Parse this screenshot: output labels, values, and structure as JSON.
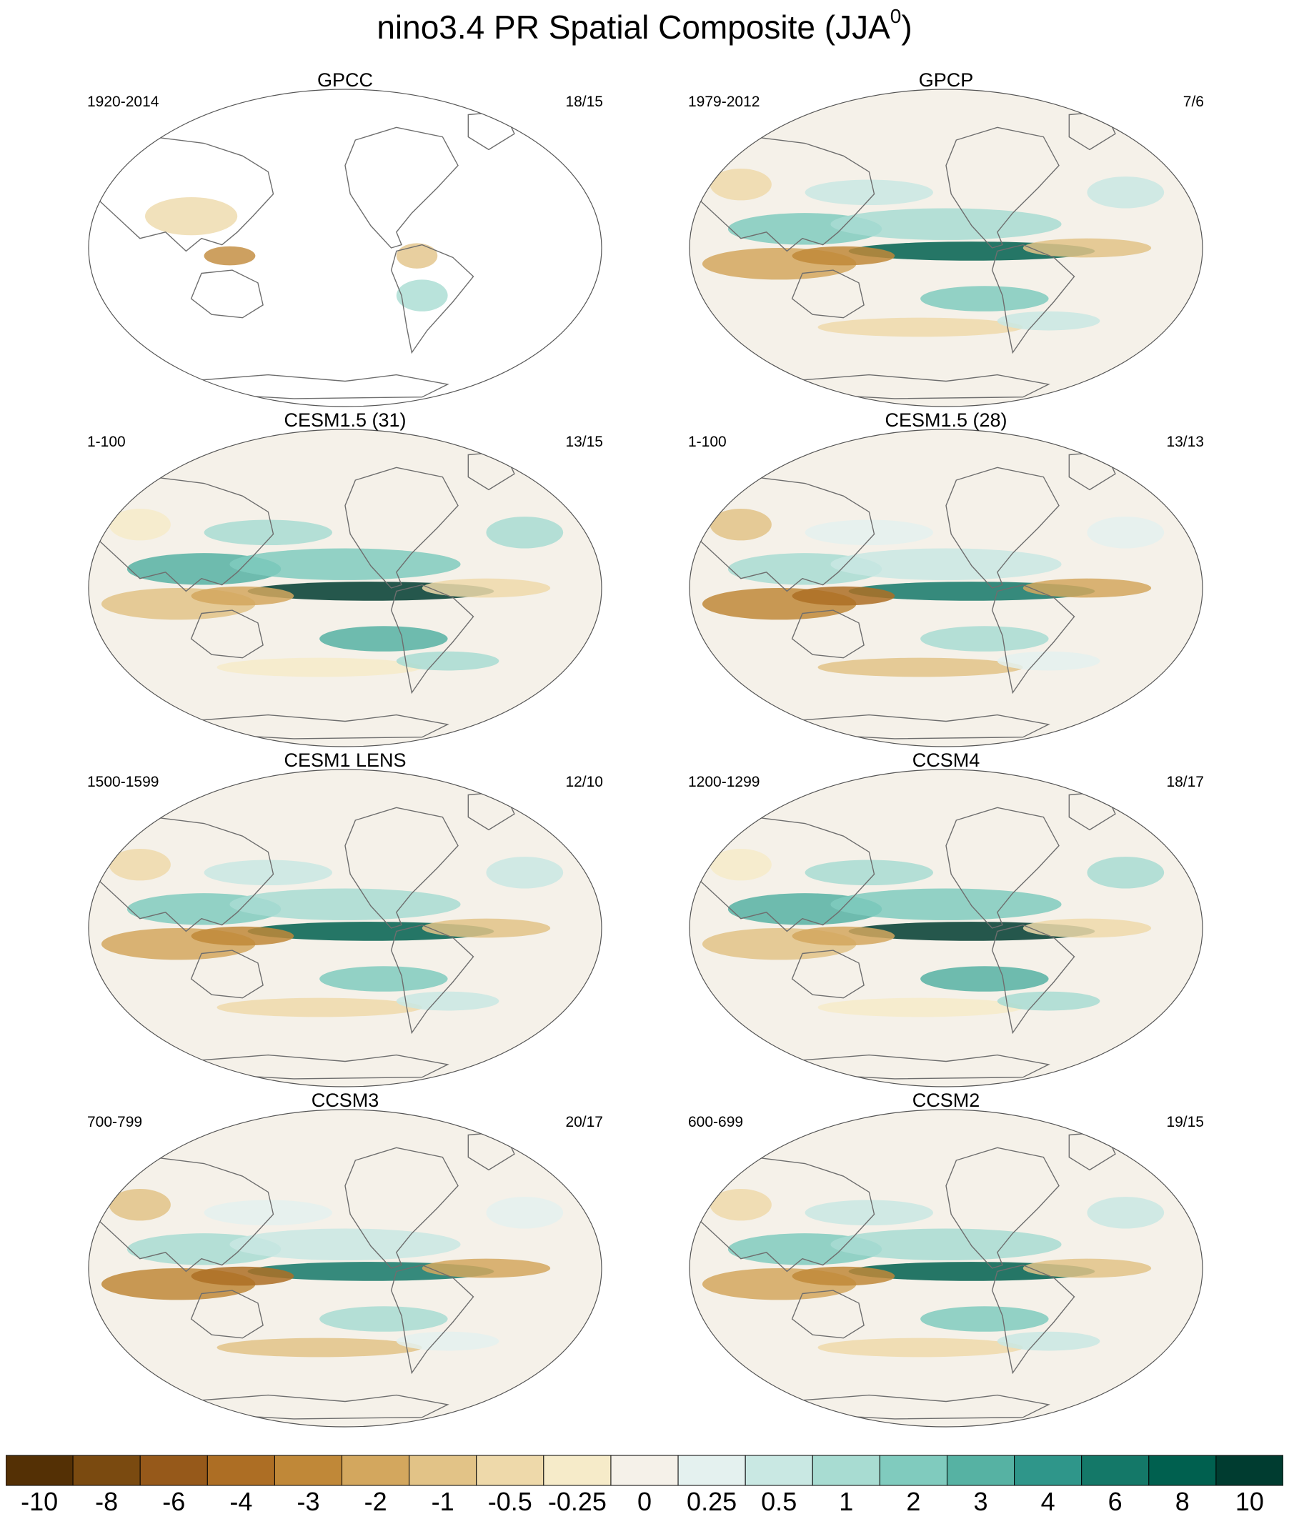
{
  "title": {
    "main": "nino3.4 PR Spatial Composite (JJA",
    "sup": "0",
    "close": ")"
  },
  "panels": [
    {
      "title": "GPCC",
      "years": "1920-2014",
      "count": "18/15",
      "land_only": true
    },
    {
      "title": "GPCP",
      "years": "1979-2012",
      "count": "7/6",
      "land_only": false
    },
    {
      "title": "CESM1.5 (31)",
      "years": "1-100",
      "count": "13/15",
      "land_only": false
    },
    {
      "title": "CESM1.5 (28)",
      "years": "1-100",
      "count": "13/13",
      "land_only": false
    },
    {
      "title": "CESM1 LENS",
      "years": "1500-1599",
      "count": "12/10",
      "land_only": false
    },
    {
      "title": "CCSM4",
      "years": "1200-1299",
      "count": "18/17",
      "land_only": false
    },
    {
      "title": "CCSM3",
      "years": "700-799",
      "count": "20/17",
      "land_only": false
    },
    {
      "title": "CCSM2",
      "years": "600-699",
      "count": "19/15",
      "land_only": false
    }
  ],
  "colorbar": {
    "labels": [
      "-10",
      "-8",
      "-6",
      "-4",
      "-3",
      "-2",
      "-1",
      "-0.5",
      "-0.25",
      "0",
      "0.25",
      "0.5",
      "1",
      "2",
      "3",
      "4",
      "6",
      "8",
      "10"
    ],
    "colors": [
      "#543005",
      "#7a4a10",
      "#96591a",
      "#ad6e24",
      "#c08838",
      "#d3a75e",
      "#e2c387",
      "#eed9aa",
      "#f6ebc9",
      "#f5f1e9",
      "#e4f1ef",
      "#c9e8e3",
      "#a8dcd2",
      "#80cbbe",
      "#56b2a3",
      "#2f968a",
      "#147868",
      "#00604f",
      "#003c30"
    ]
  }
}
